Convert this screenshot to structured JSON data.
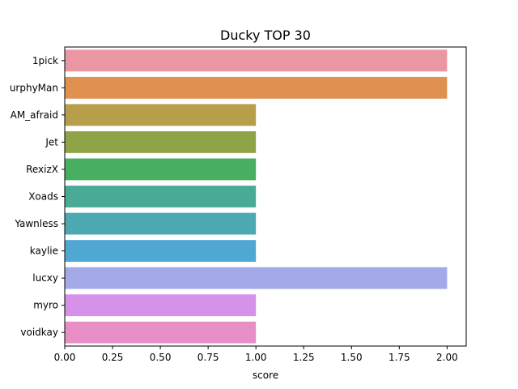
{
  "chart_data": {
    "type": "bar",
    "orientation": "horizontal",
    "title": "Ducky TOP 30",
    "xlabel": "score",
    "ylabel": "",
    "xlim": [
      0,
      2.1
    ],
    "xticks": [
      "0.00",
      "0.25",
      "0.50",
      "0.75",
      "1.00",
      "1.25",
      "1.50",
      "1.75",
      "2.00"
    ],
    "categories": [
      "1pick",
      "urphyMan",
      "AM_afraid",
      "Jet",
      "RexizX",
      "Xoads",
      "Yawnless",
      "kaylie",
      "lucxy",
      "myro",
      "voidkay"
    ],
    "values": [
      2,
      2,
      1,
      1,
      1,
      1,
      1,
      1,
      2,
      1,
      1
    ],
    "colors": [
      "#ea96a3",
      "#e0914f",
      "#b79e4a",
      "#8fa446",
      "#48ae62",
      "#49ab96",
      "#4da9b1",
      "#4fa8d2",
      "#a4a9ea",
      "#d691e8",
      "#e88fc8"
    ],
    "grid": false,
    "legend": "none"
  }
}
